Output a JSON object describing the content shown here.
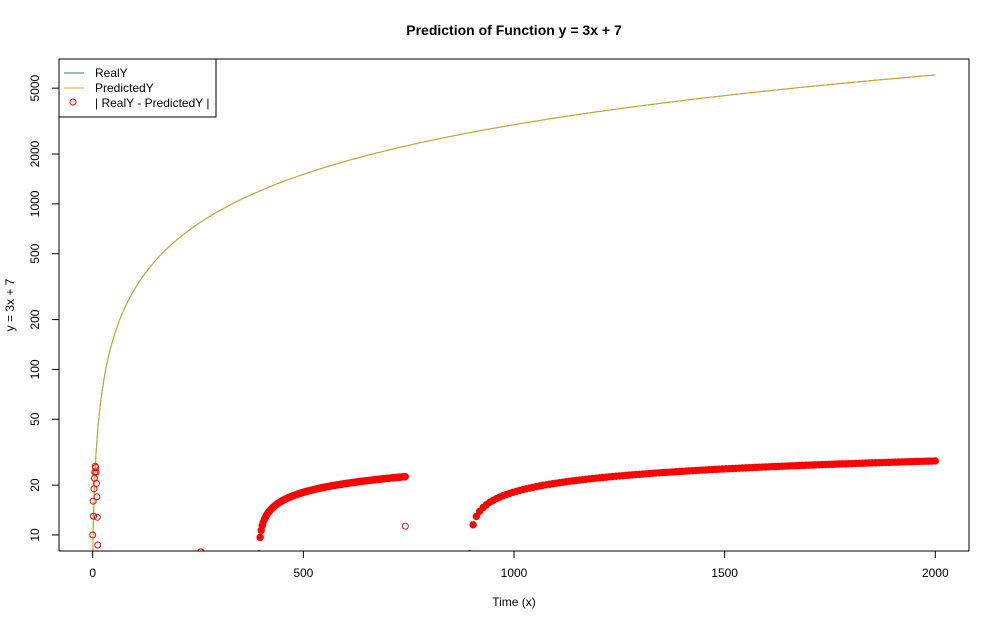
{
  "chart_data": {
    "type": "line",
    "title": "Prediction of Function y = 3x + 7",
    "xlabel": "Time (x)",
    "ylabel": "y = 3x + 7",
    "y_scale": "log",
    "xlim": [
      -80,
      2080
    ],
    "ylim": [
      8,
      7500
    ],
    "x_ticks": [
      0,
      500,
      1000,
      1500,
      2000
    ],
    "y_ticks": [
      10,
      20,
      50,
      100,
      200,
      500,
      1000,
      2000,
      5000
    ],
    "grid": false,
    "legend_position": "top-left",
    "series": [
      {
        "name": "RealY",
        "color": "#2E8B57",
        "kind": "line",
        "function": "y = 3x + 7",
        "x_range": [
          0,
          2000
        ]
      },
      {
        "name": "PredictedY",
        "color": "#DAA520",
        "kind": "line",
        "function": "y = 3x + 7",
        "x_range": [
          0,
          2000
        ]
      },
      {
        "name": "| RealY - PredictedY |",
        "color": "#FF0000",
        "kind": "points",
        "scattered_points": [
          {
            "x": 0,
            "y": 10
          },
          {
            "x": 1,
            "y": 16
          },
          {
            "x": 2,
            "y": 13
          },
          {
            "x": 3,
            "y": 19
          },
          {
            "x": 4,
            "y": 22
          },
          {
            "x": 5,
            "y": 24
          },
          {
            "x": 6,
            "y": 26
          },
          {
            "x": 7,
            "y": 25.5
          },
          {
            "x": 8,
            "y": 24
          },
          {
            "x": 9,
            "y": 20.5
          },
          {
            "x": 10,
            "y": 17
          },
          {
            "x": 11,
            "y": 12.8
          },
          {
            "x": 12,
            "y": 8.7
          },
          {
            "x": 256,
            "y": 7.9
          },
          {
            "x": 257,
            "y": 7.9
          },
          {
            "x": 742,
            "y": 11.3
          }
        ],
        "dense_segments": [
          {
            "x_start": 395,
            "x_end": 742,
            "y_start": 7.7,
            "y_end": 22.5
          },
          {
            "x_start": 895,
            "x_end": 2000,
            "y_start": 7.7,
            "y_end": 28
          }
        ]
      }
    ]
  }
}
